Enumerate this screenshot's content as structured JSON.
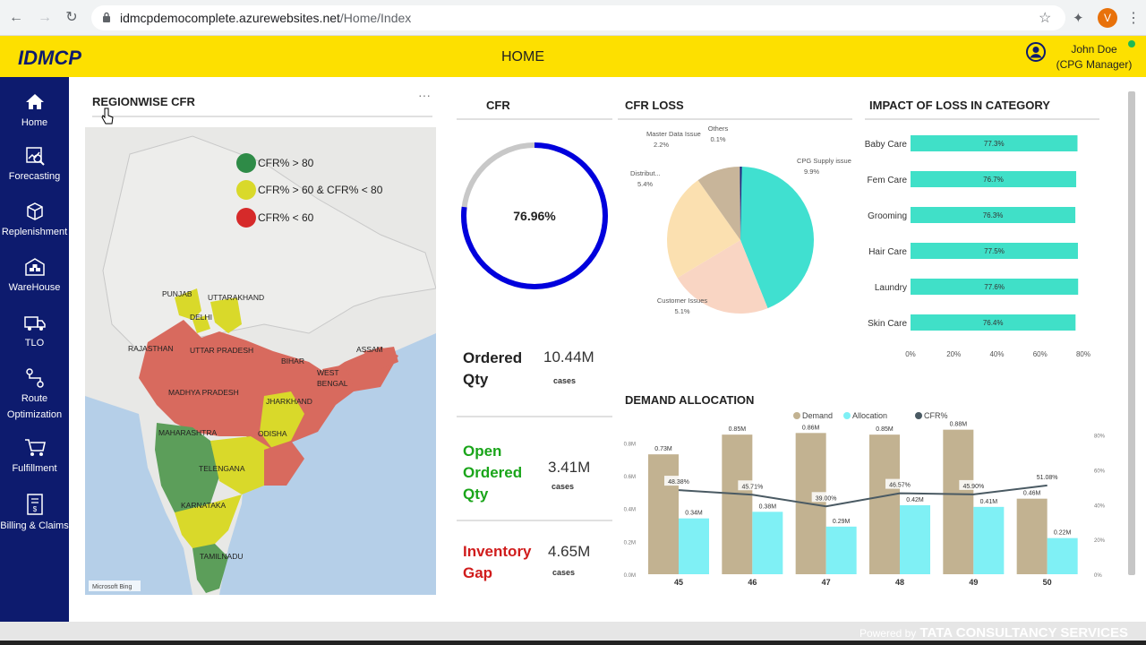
{
  "browser": {
    "url_host": "idmcpdemocomplete.azurewebsites.net",
    "url_path": "/Home/Index",
    "profile_initial": "V"
  },
  "header": {
    "logo": "IDMCP",
    "title": "HOME",
    "user_name": "John Doe",
    "user_role": "(CPG Manager)"
  },
  "sidebar": {
    "items": [
      {
        "label": "Home",
        "icon": "home-icon"
      },
      {
        "label": "Forecasting",
        "icon": "forecasting-icon"
      },
      {
        "label": "Replenishment",
        "icon": "replenishment-icon"
      },
      {
        "label": "WareHouse",
        "icon": "warehouse-icon"
      },
      {
        "label": "TLO",
        "icon": "truck-icon"
      },
      {
        "label": "Route Optimization",
        "icon": "route-icon"
      },
      {
        "label": "Fulfillment",
        "icon": "cart-icon"
      },
      {
        "label": "Billing & Claims",
        "icon": "billing-icon"
      }
    ]
  },
  "map_panel": {
    "title": "REGIONWISE CFR",
    "more": "···",
    "legend": [
      {
        "label": "CFR% > 80",
        "color": "#2e8b47"
      },
      {
        "label": "CFR% > 60 & CFR% < 80",
        "color": "#d9d92a"
      },
      {
        "label": "CFR% < 60",
        "color": "#d62a2a"
      }
    ],
    "regions": [
      "PUNJAB",
      "UTTARAKHAND",
      "DELHI",
      "RAJASTHAN",
      "UTTAR PRADESH",
      "BIHAR",
      "ASSAM",
      "WEST",
      "BENGAL",
      "MADHYA PRADESH",
      "JHARKHAND",
      "MAHARASHTRA",
      "ODISHA",
      "TELENGANA",
      "KARNATAKA",
      "TAMILNADU"
    ],
    "attribution": "Microsoft Bing"
  },
  "cfr_panel": {
    "title": "CFR",
    "value_text": "76.96%",
    "value": 76.96
  },
  "kpis": [
    {
      "label_lines": [
        "Ordered",
        "Qty"
      ],
      "value": "10.44M",
      "unit": "cases",
      "color": "#222222"
    },
    {
      "label_lines": [
        "Open",
        "Ordered",
        "Qty"
      ],
      "value": "3.41M",
      "unit": "cases",
      "color": "#1aa51a"
    },
    {
      "label_lines": [
        "Inventory",
        "Gap"
      ],
      "value": "4.65M",
      "unit": "cases",
      "color": "#d01c1c"
    }
  ],
  "footer": {
    "powered_by": "Powered by",
    "company": "TATA CONSULTANCY SERVICES"
  },
  "chart_data": [
    {
      "type": "pie",
      "title": "CFR LOSS",
      "slices": [
        {
          "label": "CPG Supply issue",
          "value": 9.9,
          "pct_text": "9.9%",
          "color": "#40e0d0"
        },
        {
          "label": "Customer Issues",
          "value": 5.1,
          "pct_text": "5.1%",
          "color": "#f9d5c3"
        },
        {
          "label": "Distribut...",
          "value": 5.4,
          "pct_text": "5.4%",
          "color": "#fbe0b0"
        },
        {
          "label": "Master Data Issue",
          "value": 2.2,
          "pct_text": "2.2%",
          "color": "#c8b59a"
        },
        {
          "label": "Others",
          "value": 0.1,
          "pct_text": "0.1%",
          "color": "#1a2a80"
        }
      ]
    },
    {
      "type": "bar",
      "orientation": "horizontal",
      "title": "IMPACT OF LOSS IN CATEGORY",
      "categories": [
        "Baby Care",
        "Fem Care",
        "Grooming",
        "Hair Care",
        "Laundry",
        "Skin Care"
      ],
      "values": [
        77.3,
        76.7,
        76.3,
        77.5,
        77.6,
        76.4
      ],
      "labels": [
        "77.3%",
        "76.7%",
        "76.3%",
        "77.5%",
        "77.6%",
        "76.4%"
      ],
      "xticks": [
        "0%",
        "20%",
        "40%",
        "60%",
        "80%"
      ],
      "xlim": [
        0,
        80
      ],
      "color": "#40e0c8"
    },
    {
      "type": "bar",
      "title": "DEMAND ALLOCATION",
      "legend": [
        "Demand",
        "Allocation",
        "CFR%"
      ],
      "colors": {
        "Demand": "#c2b291",
        "Allocation": "#7ff0f5",
        "CFR%": "#4a5a63"
      },
      "categories": [
        "45",
        "46",
        "47",
        "48",
        "49",
        "50"
      ],
      "series": [
        {
          "name": "Demand",
          "values": [
            0.73,
            0.85,
            0.86,
            0.85,
            0.88,
            0.46
          ],
          "labels": [
            "0.73M",
            "0.85M",
            "0.86M",
            "0.85M",
            "0.88M",
            "0.46M"
          ]
        },
        {
          "name": "Allocation",
          "values": [
            0.34,
            0.38,
            0.29,
            0.42,
            0.41,
            0.22
          ],
          "labels": [
            "0.34M",
            "0.38M",
            "0.29M",
            "0.42M",
            "0.41M",
            "0.22M"
          ]
        },
        {
          "name": "CFR%",
          "values": [
            48.38,
            45.71,
            39.0,
            46.57,
            45.9,
            51.08
          ],
          "labels": [
            "48.38%",
            "45.71%",
            "39.00%",
            "46.57%",
            "45.90%",
            "51.08%"
          ]
        }
      ],
      "yticks_left": [
        "0.0M",
        "0.2M",
        "0.4M",
        "0.6M",
        "0.8M"
      ],
      "ylim_left": [
        0,
        0.9
      ],
      "yticks_right": [
        "0%",
        "20%",
        "40%",
        "60%",
        "80%"
      ],
      "ylim_right": [
        0,
        85
      ]
    }
  ]
}
